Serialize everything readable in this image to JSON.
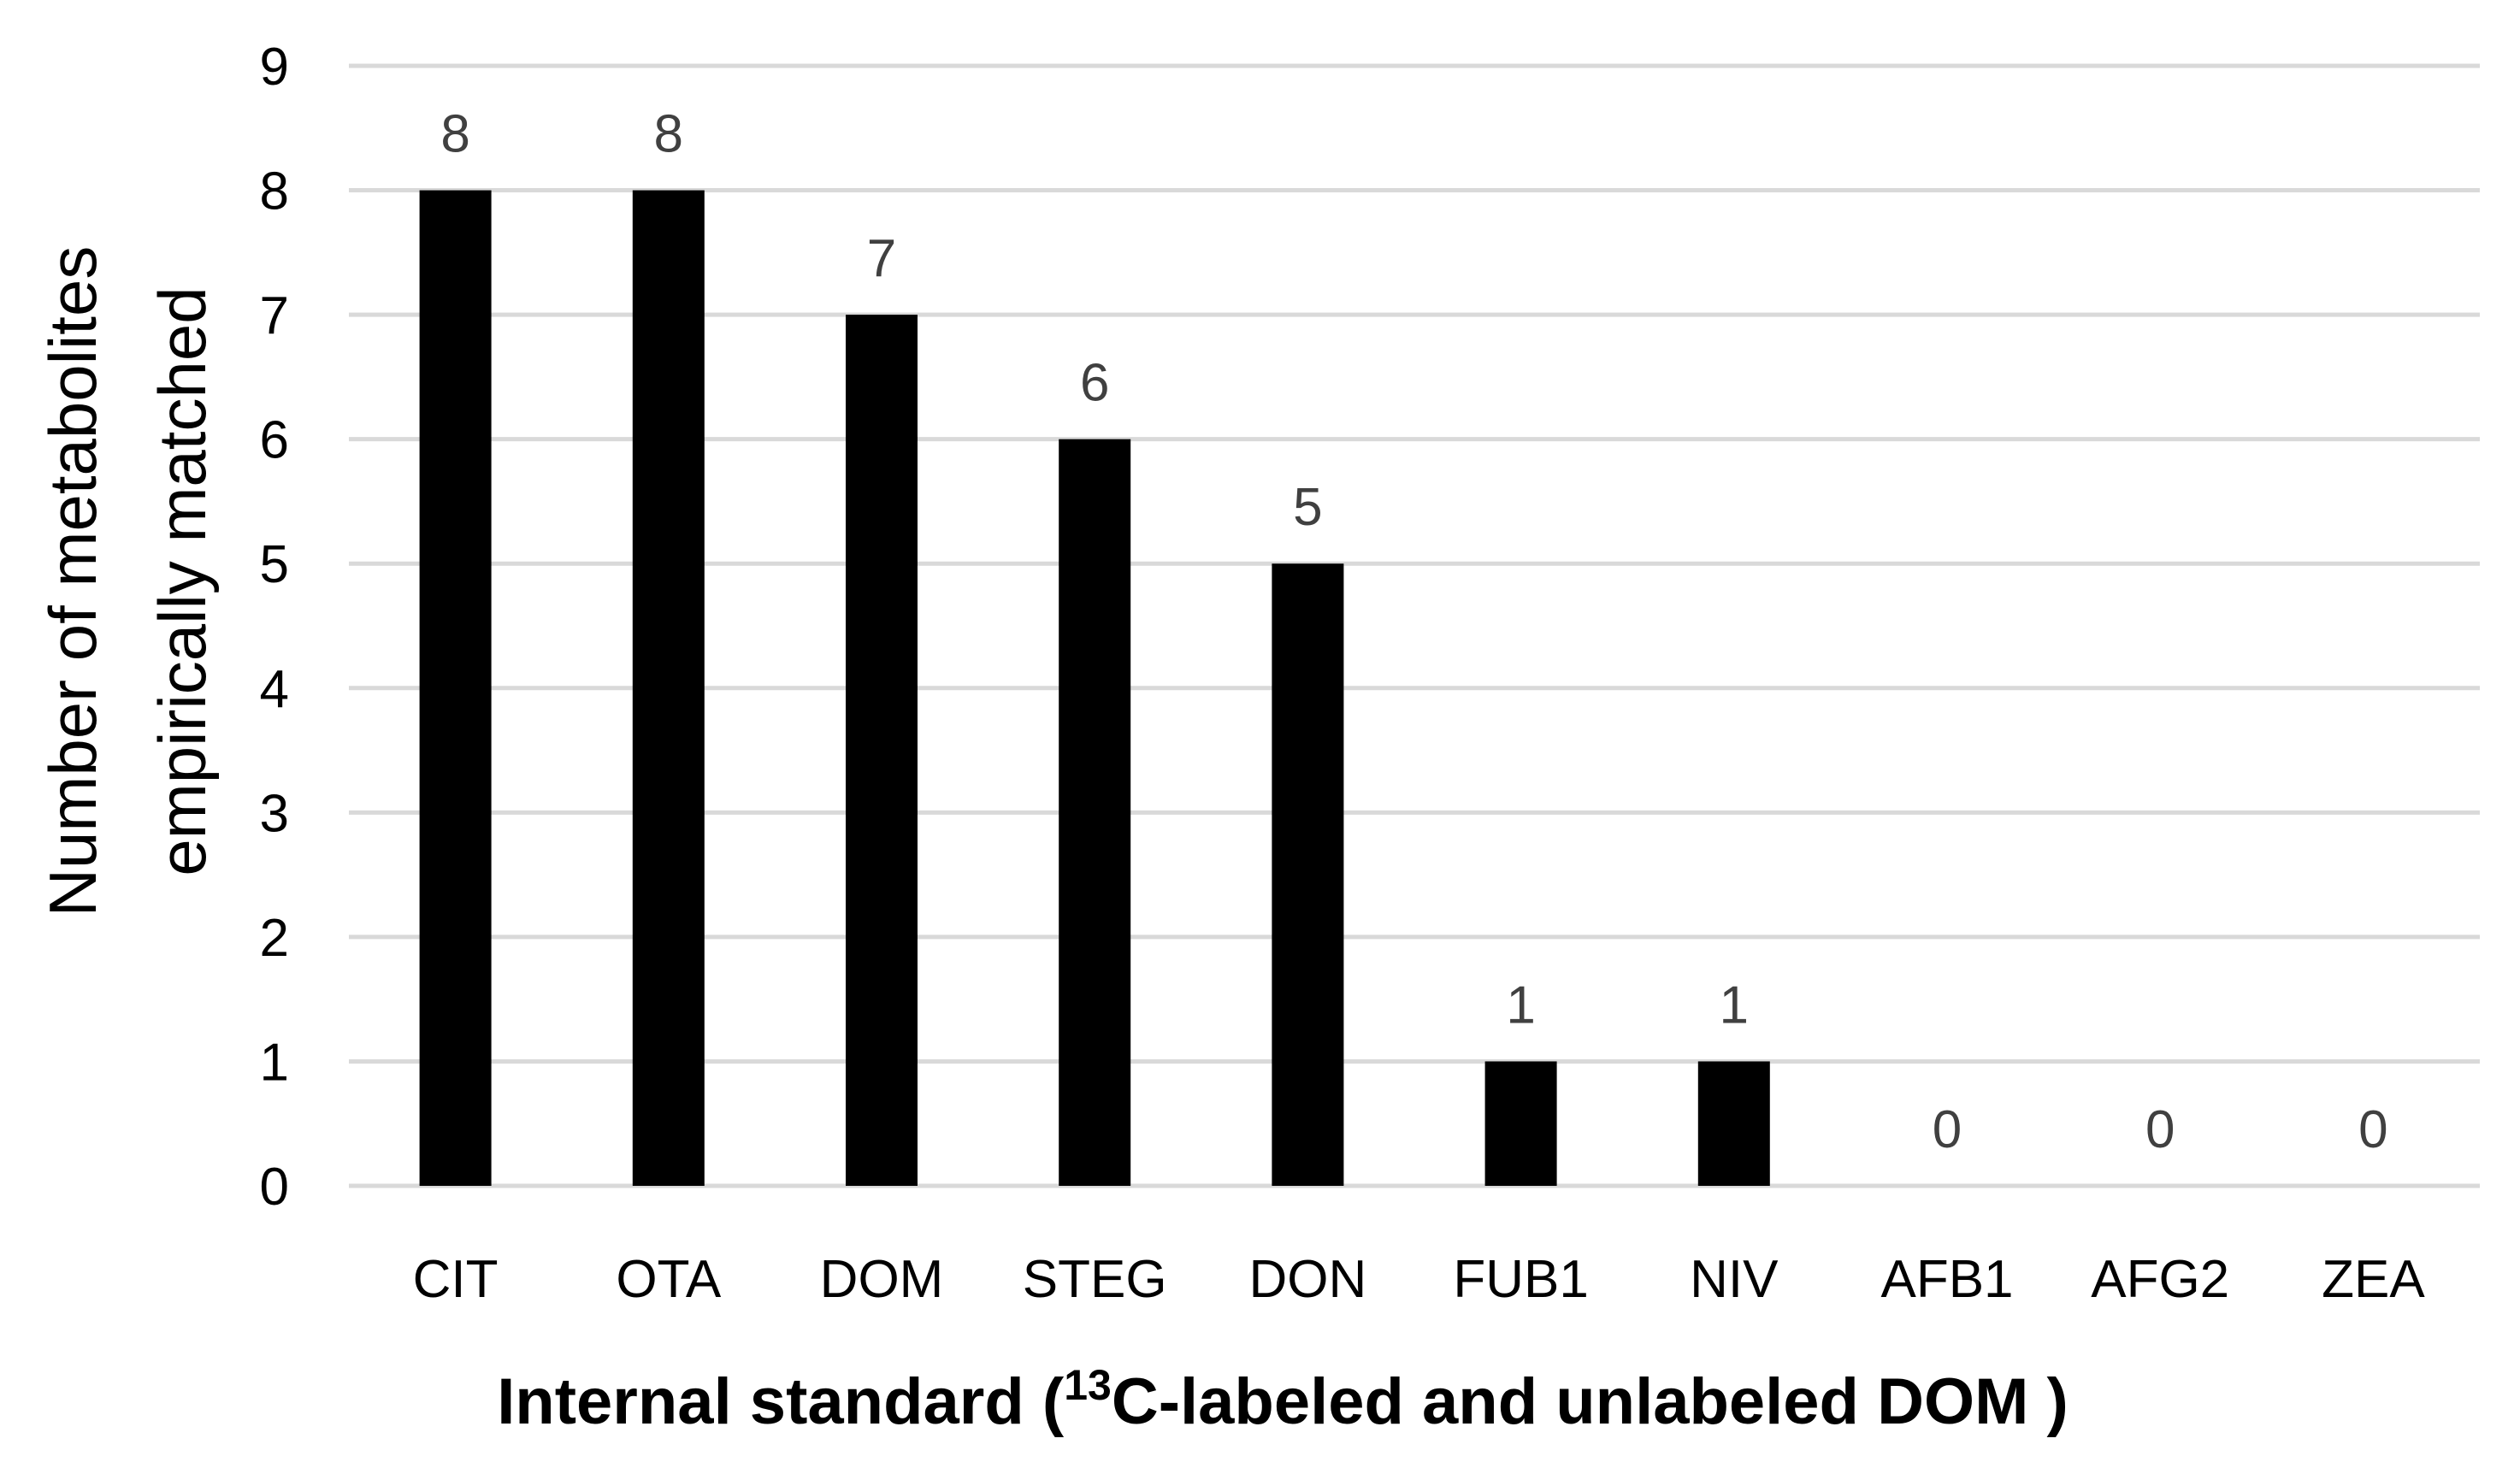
{
  "chart_data": {
    "type": "bar",
    "categories": [
      "CIT",
      "OTA",
      "DOM",
      "STEG",
      "DON",
      "FUB1",
      "NIV",
      "AFB1",
      "AFG2",
      "ZEA"
    ],
    "values": [
      8,
      8,
      7,
      6,
      5,
      1,
      1,
      0,
      0,
      0
    ],
    "data_labels": [
      "8",
      "8",
      "7",
      "6",
      "5",
      "1",
      "1",
      "0",
      "0",
      "0"
    ],
    "ylabel_line1": "Number of metabolites",
    "ylabel_line2": "empirically matched",
    "xlabel_prefix": "Internal standard (",
    "xlabel_superscript": "13",
    "xlabel_suffix": "C-labeled and unlabeled DOM )",
    "ylim": [
      0,
      9
    ],
    "yticks": [
      "0",
      "1",
      "2",
      "3",
      "4",
      "5",
      "6",
      "7",
      "8",
      "9"
    ],
    "grid": true,
    "colors": {
      "bar": "#000000",
      "grid": "#d9d9d9",
      "data_label": "#404040"
    }
  }
}
